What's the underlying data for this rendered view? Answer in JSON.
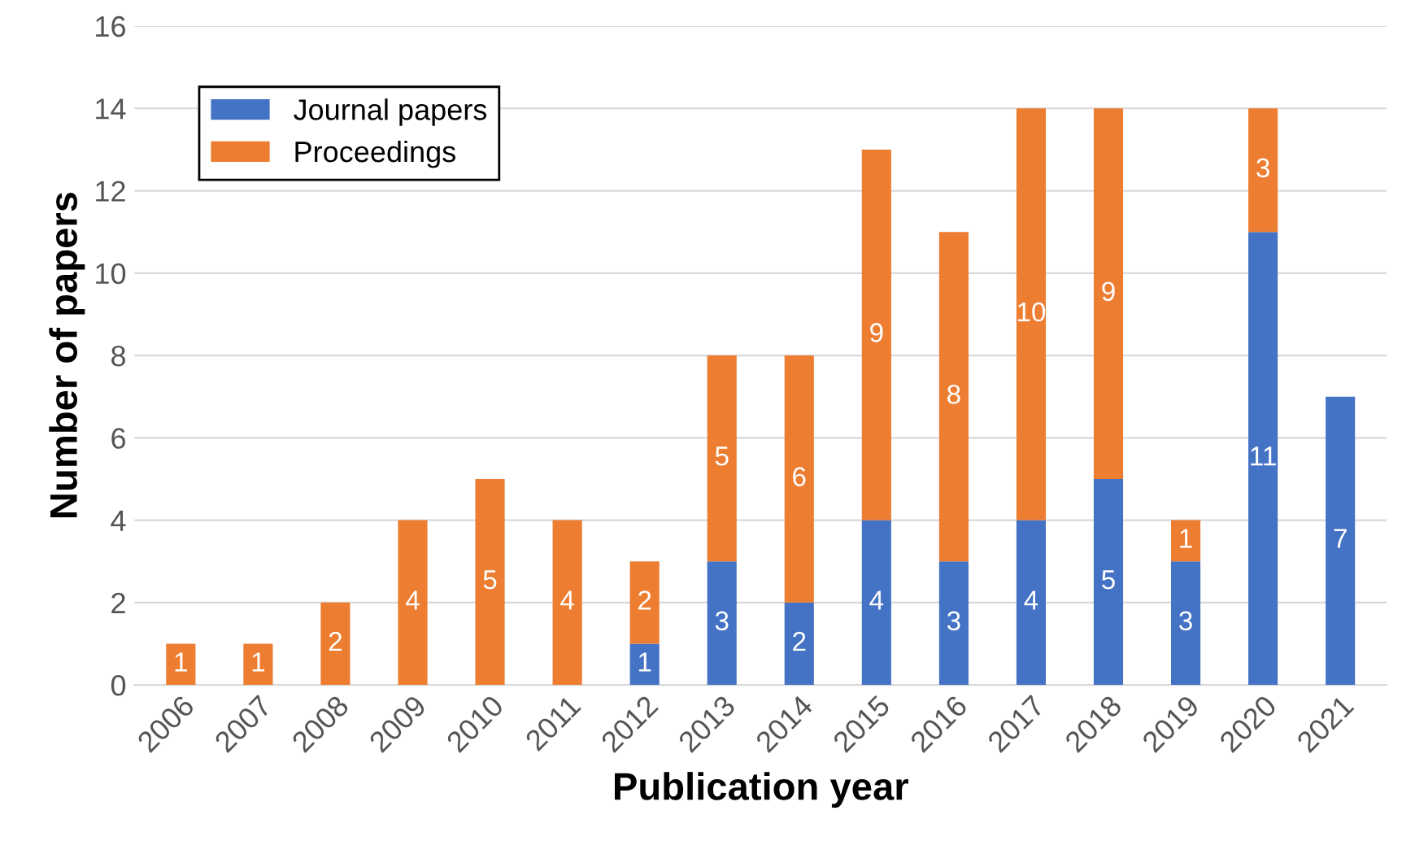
{
  "chart_data": {
    "type": "bar",
    "stacked": true,
    "xlabel": "Publication year",
    "ylabel": "Number of papers",
    "categories": [
      "2006",
      "2007",
      "2008",
      "2009",
      "2010",
      "2011",
      "2012",
      "2013",
      "2014",
      "2015",
      "2016",
      "2017",
      "2018",
      "2019",
      "2020",
      "2021"
    ],
    "series": [
      {
        "name": "Journal papers",
        "color": "#4472c4",
        "values": [
          0,
          0,
          0,
          0,
          0,
          0,
          1,
          3,
          2,
          4,
          3,
          4,
          5,
          3,
          11,
          7
        ],
        "value_labels": [
          null,
          null,
          null,
          null,
          null,
          null,
          "1",
          "3",
          "2",
          "4",
          "3",
          "4",
          "5",
          "3",
          "11",
          "7"
        ]
      },
      {
        "name": "Proceedings",
        "color": "#ed7d31",
        "values": [
          1,
          1,
          2,
          4,
          5,
          4,
          2,
          5,
          6,
          9,
          8,
          10,
          9,
          1,
          3,
          0
        ],
        "value_labels": [
          "1",
          "1",
          "2",
          "4",
          "5",
          "4",
          "2",
          "5",
          "6",
          "9",
          "8",
          "10",
          "9",
          "1",
          "3",
          null
        ]
      }
    ],
    "ylim": [
      0,
      16
    ],
    "yticks": [
      0,
      2,
      4,
      6,
      8,
      10,
      12,
      14,
      16
    ],
    "grid": "y",
    "legend": "top left"
  }
}
